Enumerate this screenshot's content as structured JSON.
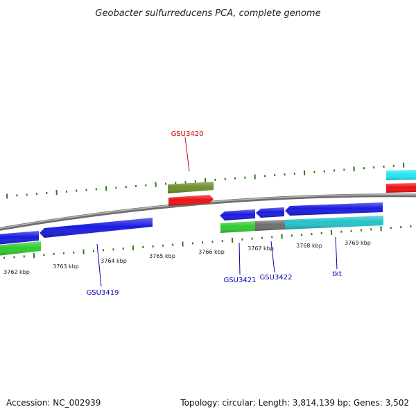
{
  "title": "Geobacter sulfurreducens PCA, complete genome",
  "footer": {
    "accession": "Accession: NC_002939",
    "summary": "Topology: circular; Length: 3,814,139 bp; Genes: 3,502"
  },
  "scale": {
    "ticks": [
      "3762 kbp",
      "3763 kbp",
      "3764 kbp",
      "3765 kbp",
      "3766 kbp",
      "3767 kbp",
      "3768 kbp",
      "3769 kbp"
    ]
  },
  "gene_labels": [
    {
      "id": "GSU3420",
      "text": "GSU3420",
      "color": "#cc0000"
    },
    {
      "id": "GSU3419",
      "text": "GSU3419",
      "color": "#0000aa"
    },
    {
      "id": "GSU3421",
      "text": "GSU3421",
      "color": "#0000aa"
    },
    {
      "id": "GSU3422",
      "text": "GSU3422",
      "color": "#0000aa"
    },
    {
      "id": "tkt",
      "text": "tkt",
      "color": "#0000aa"
    }
  ],
  "colors": {
    "backbone": "#8a8a8a",
    "tick": "#2a7a1a",
    "cds_blue": "#1a1adf",
    "cds_red": "#ee1111",
    "cds_olive": "#6e8e2a",
    "cds_green": "#2ecc2e",
    "cds_gray": "#6e6e6e",
    "cds_cyan": "#22c4c8",
    "cds_cyan_bright": "#22e8f0"
  }
}
